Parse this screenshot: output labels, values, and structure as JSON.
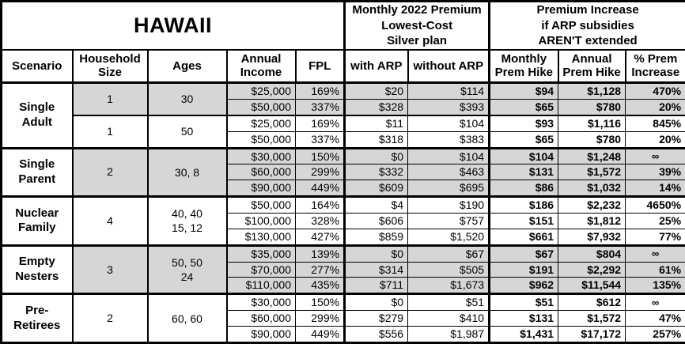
{
  "colors": {
    "shade": "#d6d6d6",
    "border": "#000000",
    "background": "#ffffff"
  },
  "chart_data": {
    "type": "table",
    "title": "HAWAII",
    "header_groups": {
      "premium_lines": [
        "Monthly 2022 Premium",
        "Lowest-Cost",
        "Silver plan"
      ],
      "increase_lines": [
        "Premium Increase",
        "if ARP subsidies",
        "AREN'T extended"
      ]
    },
    "columns": [
      "Scenario",
      "Household Size",
      "Ages",
      "Annual Income",
      "FPL",
      "with ARP",
      "without ARP",
      "Monthly Prem Hike",
      "Annual Prem Hike",
      "% Prem Increase"
    ],
    "row_value_order": [
      "annual_income",
      "fpl",
      "with_arp",
      "without_arp",
      "monthly_prem_hike",
      "annual_prem_hike",
      "pct_prem_increase"
    ],
    "groups": [
      {
        "scenario_lines": [
          "Single",
          "Adult"
        ],
        "subgroups": [
          {
            "household": "1",
            "ages_lines": [
              "30"
            ],
            "shaded": true,
            "rows": [
              [
                "$25,000",
                "169%",
                "$20",
                "$114",
                "$94",
                "$1,128",
                "470%"
              ],
              [
                "$50,000",
                "337%",
                "$328",
                "$393",
                "$65",
                "$780",
                "20%"
              ]
            ]
          },
          {
            "household": "1",
            "ages_lines": [
              "50"
            ],
            "shaded": false,
            "rows": [
              [
                "$25,000",
                "169%",
                "$11",
                "$104",
                "$93",
                "$1,116",
                "845%"
              ],
              [
                "$50,000",
                "337%",
                "$318",
                "$383",
                "$65",
                "$780",
                "20%"
              ]
            ]
          }
        ]
      },
      {
        "scenario_lines": [
          "Single",
          "Parent"
        ],
        "subgroups": [
          {
            "household": "2",
            "ages_lines": [
              "30, 8"
            ],
            "shaded": true,
            "rows": [
              [
                "$30,000",
                "150%",
                "$0",
                "$104",
                "$104",
                "$1,248",
                "∞"
              ],
              [
                "$60,000",
                "299%",
                "$332",
                "$463",
                "$131",
                "$1,572",
                "39%"
              ],
              [
                "$90,000",
                "449%",
                "$609",
                "$695",
                "$86",
                "$1,032",
                "14%"
              ]
            ]
          }
        ]
      },
      {
        "scenario_lines": [
          "Nuclear",
          "Family"
        ],
        "subgroups": [
          {
            "household": "4",
            "ages_lines": [
              "40, 40",
              "15, 12"
            ],
            "shaded": false,
            "rows": [
              [
                "$50,000",
                "164%",
                "$4",
                "$190",
                "$186",
                "$2,232",
                "4650%"
              ],
              [
                "$100,000",
                "328%",
                "$606",
                "$757",
                "$151",
                "$1,812",
                "25%"
              ],
              [
                "$130,000",
                "427%",
                "$859",
                "$1,520",
                "$661",
                "$7,932",
                "77%"
              ]
            ]
          }
        ]
      },
      {
        "scenario_lines": [
          "Empty",
          "Nesters"
        ],
        "subgroups": [
          {
            "household": "3",
            "ages_lines": [
              "50, 50",
              "24"
            ],
            "shaded": true,
            "rows": [
              [
                "$35,000",
                "139%",
                "$0",
                "$67",
                "$67",
                "$804",
                "∞"
              ],
              [
                "$70,000",
                "277%",
                "$314",
                "$505",
                "$191",
                "$2,292",
                "61%"
              ],
              [
                "$110,000",
                "435%",
                "$711",
                "$1,673",
                "$962",
                "$11,544",
                "135%"
              ]
            ]
          }
        ]
      },
      {
        "scenario_lines": [
          "Pre-",
          "Retirees"
        ],
        "subgroups": [
          {
            "household": "2",
            "ages_lines": [
              "60, 60"
            ],
            "shaded": false,
            "rows": [
              [
                "$30,000",
                "150%",
                "$0",
                "$51",
                "$51",
                "$612",
                "∞"
              ],
              [
                "$60,000",
                "299%",
                "$279",
                "$410",
                "$131",
                "$1,572",
                "47%"
              ],
              [
                "$90,000",
                "449%",
                "$556",
                "$1,987",
                "$1,431",
                "$17,172",
                "257%"
              ]
            ]
          }
        ]
      }
    ]
  }
}
